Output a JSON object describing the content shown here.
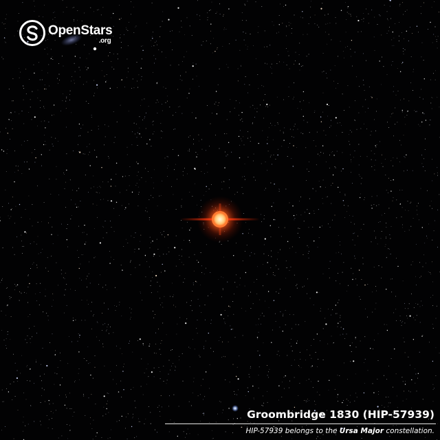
{
  "logo": {
    "name": "OpenStars",
    "suffix": ".org",
    "icon": "openstars-s-icon"
  },
  "caption": {
    "title": "Groombridge 1830 (HIP-57939)",
    "subtitle_prefix": "HIP-57939 belongs to the ",
    "constellation": "Ursa Major",
    "subtitle_suffix": " constellation."
  },
  "colors": {
    "sky": "#020203",
    "star_core": "#ffd9a0",
    "star_glow": "#ff4a12",
    "caption_text": "#ffffff"
  }
}
